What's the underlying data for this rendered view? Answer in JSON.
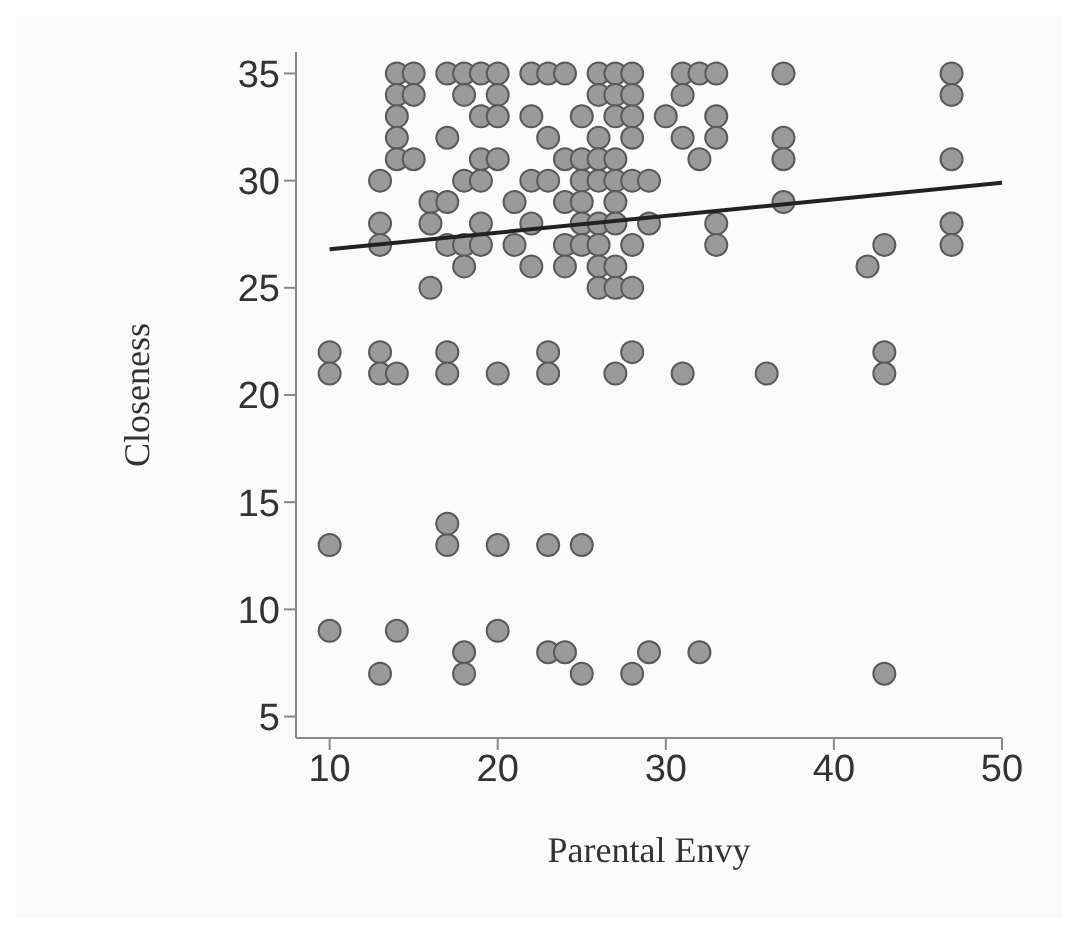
{
  "chart_data": {
    "type": "scatter",
    "xlabel": "Parental Envy",
    "ylabel": "Closeness",
    "xlim": [
      8,
      50
    ],
    "ylim": [
      4,
      36
    ],
    "xticks": [
      10,
      20,
      30,
      40,
      50
    ],
    "yticks": [
      5,
      10,
      15,
      20,
      25,
      30,
      35
    ],
    "series": [
      {
        "marker": "circle",
        "color": "#9a9a9a",
        "x": [
          10,
          13,
          17,
          23,
          28,
          43,
          10,
          13,
          14,
          17,
          20,
          23,
          27,
          31,
          36,
          43,
          10,
          17,
          20,
          23,
          25,
          17,
          10,
          14,
          20,
          18,
          23,
          24,
          29,
          32,
          13,
          18,
          25,
          28,
          43,
          14,
          15,
          17,
          18,
          19,
          20,
          22,
          23,
          24,
          26,
          27,
          28,
          31,
          32,
          33,
          37,
          47,
          14,
          15,
          18,
          20,
          26,
          27,
          28,
          31,
          47,
          14,
          19,
          20,
          22,
          25,
          27,
          28,
          30,
          33,
          14,
          17,
          23,
          26,
          28,
          31,
          33,
          37,
          14,
          15,
          19,
          20,
          24,
          25,
          26,
          27,
          32,
          37,
          47,
          13,
          18,
          19,
          22,
          23,
          25,
          26,
          27,
          28,
          29,
          16,
          17,
          21,
          24,
          25,
          27,
          37,
          13,
          16,
          19,
          22,
          25,
          26,
          27,
          29,
          33,
          47,
          13,
          17,
          18,
          19,
          21,
          24,
          25,
          26,
          28,
          33,
          43,
          47,
          18,
          22,
          24,
          26,
          27,
          42,
          16,
          26,
          27,
          28
        ],
        "values": [
          22,
          22,
          22,
          22,
          22,
          22,
          21,
          21,
          21,
          21,
          21,
          21,
          21,
          21,
          21,
          21,
          13,
          13,
          13,
          13,
          13,
          14,
          9,
          9,
          9,
          8,
          8,
          8,
          8,
          8,
          7,
          7,
          7,
          7,
          7,
          35,
          35,
          35,
          35,
          35,
          35,
          35,
          35,
          35,
          35,
          35,
          35,
          35,
          35,
          35,
          35,
          35,
          34,
          34,
          34,
          34,
          34,
          34,
          34,
          34,
          34,
          33,
          33,
          33,
          33,
          33,
          33,
          33,
          33,
          33,
          32,
          32,
          32,
          32,
          32,
          32,
          32,
          32,
          31,
          31,
          31,
          31,
          31,
          31,
          31,
          31,
          31,
          31,
          31,
          30,
          30,
          30,
          30,
          30,
          30,
          30,
          30,
          30,
          30,
          29,
          29,
          29,
          29,
          29,
          29,
          29,
          28,
          28,
          28,
          28,
          28,
          28,
          28,
          28,
          28,
          28,
          27,
          27,
          27,
          27,
          27,
          27,
          27,
          27,
          27,
          27,
          27,
          27,
          26,
          26,
          26,
          26,
          26,
          26,
          25,
          25,
          25,
          25
        ]
      },
      {
        "type": "line",
        "marker": "none",
        "line_style": "solid",
        "color": "#222222",
        "x": [
          10,
          50
        ],
        "values": [
          26.8,
          29.9
        ]
      }
    ]
  }
}
